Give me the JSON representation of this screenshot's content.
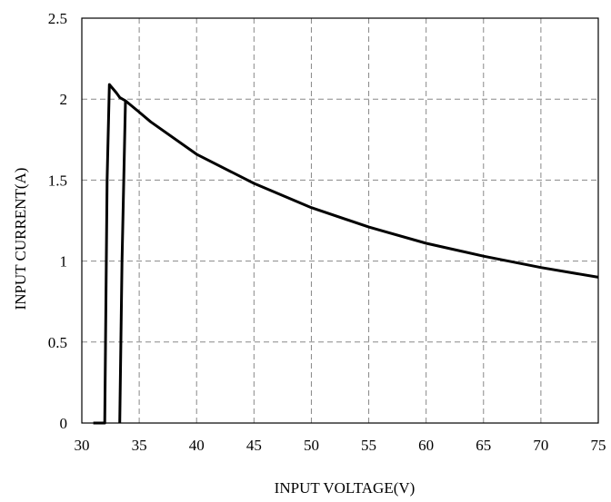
{
  "chart_data": {
    "type": "line",
    "title": "",
    "xlabel": "INPUT VOLTAGE(V)",
    "ylabel": "INPUT CURRENT(A)",
    "xlim": [
      30,
      75
    ],
    "ylim": [
      0,
      2.5
    ],
    "x_ticks": [
      30,
      35,
      40,
      45,
      50,
      55,
      60,
      65,
      70,
      75
    ],
    "x_tick_labels": [
      "30",
      "35",
      "40",
      "45",
      "50",
      "55",
      "60",
      "65",
      "70",
      "75"
    ],
    "y_ticks": [
      0,
      0.5,
      1,
      1.5,
      2,
      2.5
    ],
    "y_tick_labels": [
      "0",
      "0.5",
      "1",
      "1.5",
      "2",
      "2.5"
    ],
    "grid": true,
    "grid_style": "dashed",
    "legend": "none",
    "series": [
      {
        "color": "#000000",
        "x": [
          31.0,
          32.0,
          32.2,
          32.4,
          33.0,
          33.3,
          33.8,
          35.0,
          36.0,
          40.0,
          45.0,
          50.0,
          55.0,
          60.0,
          65.0,
          70.0,
          75.0
        ],
        "y": [
          0,
          0,
          1.5,
          2.09,
          2.04,
          2.01,
          1.99,
          1.92,
          1.86,
          1.66,
          1.48,
          1.33,
          1.21,
          1.11,
          1.03,
          0.96,
          0.9
        ]
      },
      {
        "color": "#000000",
        "x": [
          33.3,
          33.5,
          33.8
        ],
        "y": [
          0,
          1.0,
          1.99
        ]
      }
    ]
  }
}
